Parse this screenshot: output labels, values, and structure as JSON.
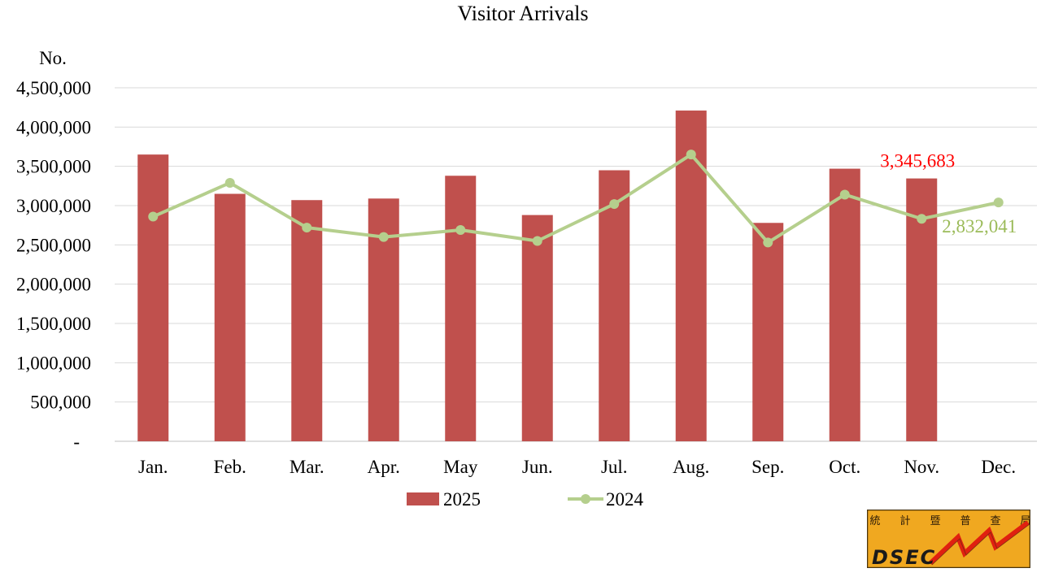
{
  "chart_data": {
    "type": "bar",
    "title": "Visitor Arrivals",
    "ylabel": "No.",
    "xlabel": "",
    "categories": [
      "Jan.",
      "Feb.",
      "Mar.",
      "Apr.",
      "May",
      "Jun.",
      "Jul.",
      "Aug.",
      "Sep.",
      "Oct.",
      "Nov.",
      "Dec."
    ],
    "ylim": [
      0,
      4500000
    ],
    "yticks": [
      {
        "value": 0,
        "label": "-"
      },
      {
        "value": 500000,
        "label": "500,000"
      },
      {
        "value": 1000000,
        "label": "1,000,000"
      },
      {
        "value": 1500000,
        "label": "1,500,000"
      },
      {
        "value": 2000000,
        "label": "2,000,000"
      },
      {
        "value": 2500000,
        "label": "2,500,000"
      },
      {
        "value": 3000000,
        "label": "3,000,000"
      },
      {
        "value": 3500000,
        "label": "3,500,000"
      },
      {
        "value": 4000000,
        "label": "4,000,000"
      },
      {
        "value": 4500000,
        "label": "4,500,000"
      }
    ],
    "grid": true,
    "legend_position": "bottom",
    "series": [
      {
        "name": "2025",
        "type": "bar",
        "color": "#c0504d",
        "values": [
          3650000,
          3150000,
          3070000,
          3090000,
          3380000,
          2880000,
          3450000,
          4210000,
          2780000,
          3470000,
          3345683,
          null
        ],
        "data_label": {
          "index": 10,
          "text": "3,345,683",
          "color": "#ff0000"
        }
      },
      {
        "name": "2024",
        "type": "line",
        "color": "#b5cf8d",
        "values": [
          2860000,
          3290000,
          2720000,
          2600000,
          2690000,
          2550000,
          3020000,
          3650000,
          2530000,
          3140000,
          2832041,
          3040000
        ],
        "data_label": {
          "index": 10,
          "text": "2,832,041",
          "color": "#9bbb59"
        }
      }
    ]
  },
  "logo": {
    "chars": [
      "統",
      "計",
      "暨",
      "普",
      "查",
      "局"
    ],
    "text": "DSEC",
    "bg_color": "#f0a820",
    "border_color": "#4a3510",
    "zigzag_color": "#e02010"
  }
}
